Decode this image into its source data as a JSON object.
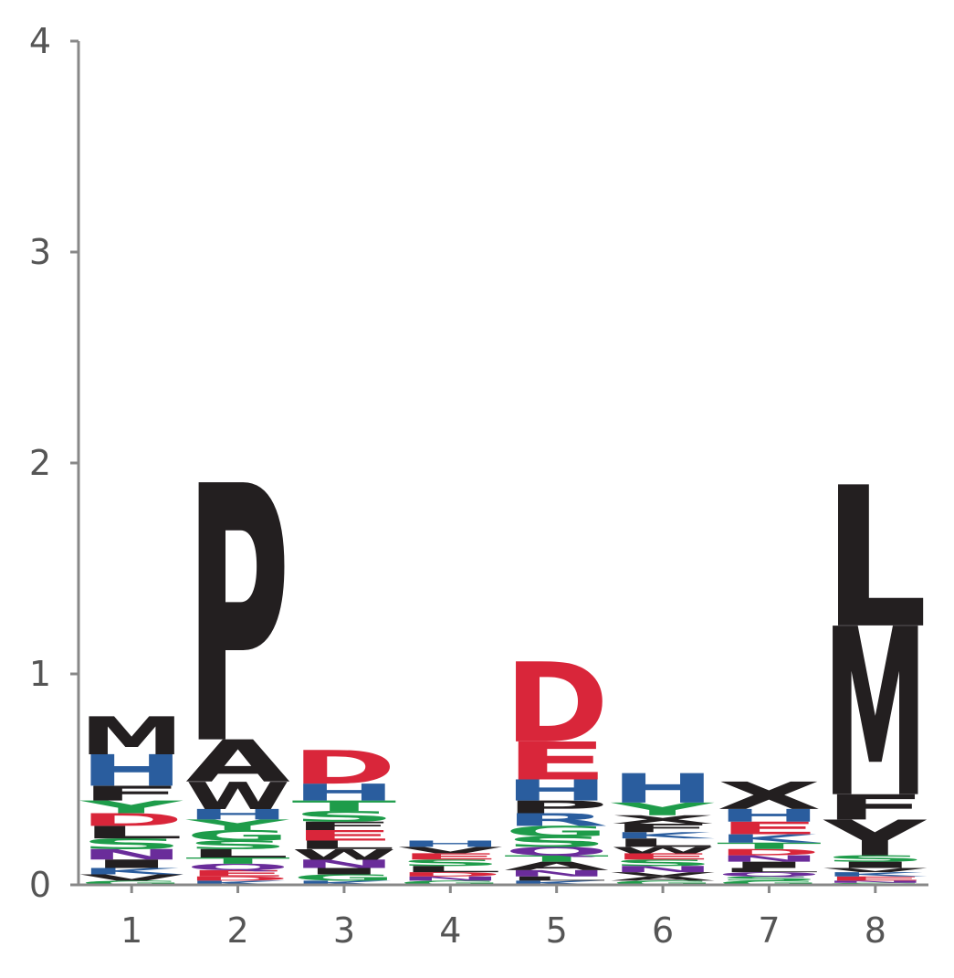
{
  "chart_data": {
    "type": "sequence-logo",
    "x": [
      "1",
      "2",
      "3",
      "4",
      "5",
      "6",
      "7",
      "8"
    ],
    "y_ticks": [
      "0",
      "1",
      "2",
      "3",
      "4"
    ],
    "ylim": [
      0,
      4
    ],
    "colors": {
      "black": "#231f20",
      "blue": "#2a5d9e",
      "red": "#d9263a",
      "green": "#1e9c4a",
      "purple": "#6a2c9a",
      "axis": "#888888",
      "tick_label": "#555555"
    },
    "positions": [
      {
        "pos": "1",
        "stack": [
          {
            "letter": "M",
            "height": 0.18,
            "color": "black"
          },
          {
            "letter": "H",
            "height": 0.15,
            "color": "blue"
          },
          {
            "letter": "F",
            "height": 0.07,
            "color": "black"
          },
          {
            "letter": "Y",
            "height": 0.06,
            "color": "green"
          },
          {
            "letter": "D",
            "height": 0.06,
            "color": "red"
          },
          {
            "letter": "L",
            "height": 0.06,
            "color": "black"
          },
          {
            "letter": "S",
            "height": 0.05,
            "color": "green"
          },
          {
            "letter": "N",
            "height": 0.05,
            "color": "purple"
          },
          {
            "letter": "I",
            "height": 0.04,
            "color": "black"
          },
          {
            "letter": "K",
            "height": 0.03,
            "color": "blue"
          },
          {
            "letter": "V",
            "height": 0.03,
            "color": "black"
          },
          {
            "letter": "G",
            "height": 0.02,
            "color": "green"
          }
        ]
      },
      {
        "pos": "2",
        "stack": [
          {
            "letter": "P",
            "height": 1.22,
            "color": "black"
          },
          {
            "letter": "A",
            "height": 0.2,
            "color": "black"
          },
          {
            "letter": "W",
            "height": 0.13,
            "color": "black"
          },
          {
            "letter": "H",
            "height": 0.05,
            "color": "blue"
          },
          {
            "letter": "Y",
            "height": 0.05,
            "color": "green"
          },
          {
            "letter": "G",
            "height": 0.05,
            "color": "green"
          },
          {
            "letter": "S",
            "height": 0.04,
            "color": "green"
          },
          {
            "letter": "L",
            "height": 0.04,
            "color": "black"
          },
          {
            "letter": "T",
            "height": 0.03,
            "color": "green"
          },
          {
            "letter": "Q",
            "height": 0.03,
            "color": "purple"
          },
          {
            "letter": "E",
            "height": 0.03,
            "color": "red"
          },
          {
            "letter": "D",
            "height": 0.02,
            "color": "red"
          },
          {
            "letter": "K",
            "height": 0.02,
            "color": "blue"
          }
        ]
      },
      {
        "pos": "3",
        "stack": [
          {
            "letter": "D",
            "height": 0.16,
            "color": "red"
          },
          {
            "letter": "H",
            "height": 0.08,
            "color": "blue"
          },
          {
            "letter": "T",
            "height": 0.05,
            "color": "green"
          },
          {
            "letter": "S",
            "height": 0.05,
            "color": "green"
          },
          {
            "letter": "F",
            "height": 0.04,
            "color": "black"
          },
          {
            "letter": "E",
            "height": 0.05,
            "color": "red"
          },
          {
            "letter": "L",
            "height": 0.04,
            "color": "black"
          },
          {
            "letter": "W",
            "height": 0.05,
            "color": "black"
          },
          {
            "letter": "N",
            "height": 0.04,
            "color": "purple"
          },
          {
            "letter": "I",
            "height": 0.03,
            "color": "black"
          },
          {
            "letter": "G",
            "height": 0.03,
            "color": "green"
          },
          {
            "letter": "K",
            "height": 0.02,
            "color": "blue"
          }
        ]
      },
      {
        "pos": "4",
        "stack": [
          {
            "letter": "H",
            "height": 0.03,
            "color": "blue"
          },
          {
            "letter": "V",
            "height": 0.03,
            "color": "black"
          },
          {
            "letter": "E",
            "height": 0.03,
            "color": "red"
          },
          {
            "letter": "S",
            "height": 0.03,
            "color": "green"
          },
          {
            "letter": "L",
            "height": 0.03,
            "color": "black"
          },
          {
            "letter": "D",
            "height": 0.02,
            "color": "red"
          },
          {
            "letter": "N",
            "height": 0.02,
            "color": "purple"
          },
          {
            "letter": "G",
            "height": 0.02,
            "color": "green"
          }
        ]
      },
      {
        "pos": "5",
        "stack": [
          {
            "letter": "D",
            "height": 0.38,
            "color": "red"
          },
          {
            "letter": "E",
            "height": 0.18,
            "color": "red"
          },
          {
            "letter": "H",
            "height": 0.1,
            "color": "blue"
          },
          {
            "letter": "P",
            "height": 0.06,
            "color": "black"
          },
          {
            "letter": "R",
            "height": 0.06,
            "color": "blue"
          },
          {
            "letter": "G",
            "height": 0.05,
            "color": "green"
          },
          {
            "letter": "S",
            "height": 0.05,
            "color": "green"
          },
          {
            "letter": "Q",
            "height": 0.04,
            "color": "purple"
          },
          {
            "letter": "T",
            "height": 0.03,
            "color": "green"
          },
          {
            "letter": "A",
            "height": 0.04,
            "color": "black"
          },
          {
            "letter": "N",
            "height": 0.03,
            "color": "purple"
          },
          {
            "letter": "L",
            "height": 0.02,
            "color": "black"
          },
          {
            "letter": "K",
            "height": 0.02,
            "color": "blue"
          }
        ]
      },
      {
        "pos": "6",
        "stack": [
          {
            "letter": "H",
            "height": 0.14,
            "color": "blue"
          },
          {
            "letter": "Y",
            "height": 0.06,
            "color": "green"
          },
          {
            "letter": "X",
            "height": 0.04,
            "color": "black"
          },
          {
            "letter": "F",
            "height": 0.04,
            "color": "black"
          },
          {
            "letter": "K",
            "height": 0.03,
            "color": "blue"
          },
          {
            "letter": "L",
            "height": 0.04,
            "color": "black"
          },
          {
            "letter": "W",
            "height": 0.03,
            "color": "black"
          },
          {
            "letter": "E",
            "height": 0.03,
            "color": "red"
          },
          {
            "letter": "S",
            "height": 0.03,
            "color": "green"
          },
          {
            "letter": "N",
            "height": 0.03,
            "color": "purple"
          },
          {
            "letter": "V",
            "height": 0.02,
            "color": "black"
          },
          {
            "letter": "A",
            "height": 0.02,
            "color": "black"
          },
          {
            "letter": "G",
            "height": 0.02,
            "color": "green"
          }
        ]
      },
      {
        "pos": "7",
        "stack": [
          {
            "letter": "X",
            "height": 0.13,
            "color": "black"
          },
          {
            "letter": "H",
            "height": 0.06,
            "color": "blue"
          },
          {
            "letter": "E",
            "height": 0.06,
            "color": "red"
          },
          {
            "letter": "K",
            "height": 0.04,
            "color": "blue"
          },
          {
            "letter": "T",
            "height": 0.03,
            "color": "green"
          },
          {
            "letter": "D",
            "height": 0.03,
            "color": "red"
          },
          {
            "letter": "N",
            "height": 0.03,
            "color": "purple"
          },
          {
            "letter": "I",
            "height": 0.03,
            "color": "black"
          },
          {
            "letter": "L",
            "height": 0.02,
            "color": "black"
          },
          {
            "letter": "Q",
            "height": 0.02,
            "color": "purple"
          },
          {
            "letter": "S",
            "height": 0.02,
            "color": "green"
          },
          {
            "letter": "G",
            "height": 0.02,
            "color": "green"
          }
        ]
      },
      {
        "pos": "8",
        "stack": [
          {
            "letter": "L",
            "height": 0.67,
            "color": "black"
          },
          {
            "letter": "M",
            "height": 0.8,
            "color": "black"
          },
          {
            "letter": "F",
            "height": 0.12,
            "color": "black"
          },
          {
            "letter": "Y",
            "height": 0.17,
            "color": "black"
          },
          {
            "letter": "S",
            "height": 0.03,
            "color": "green"
          },
          {
            "letter": "I",
            "height": 0.03,
            "color": "black"
          },
          {
            "letter": "V",
            "height": 0.02,
            "color": "black"
          },
          {
            "letter": "K",
            "height": 0.02,
            "color": "blue"
          },
          {
            "letter": "E",
            "height": 0.02,
            "color": "red"
          },
          {
            "letter": "N",
            "height": 0.01,
            "color": "purple"
          },
          {
            "letter": "G",
            "height": 0.01,
            "color": "green"
          }
        ]
      }
    ]
  }
}
